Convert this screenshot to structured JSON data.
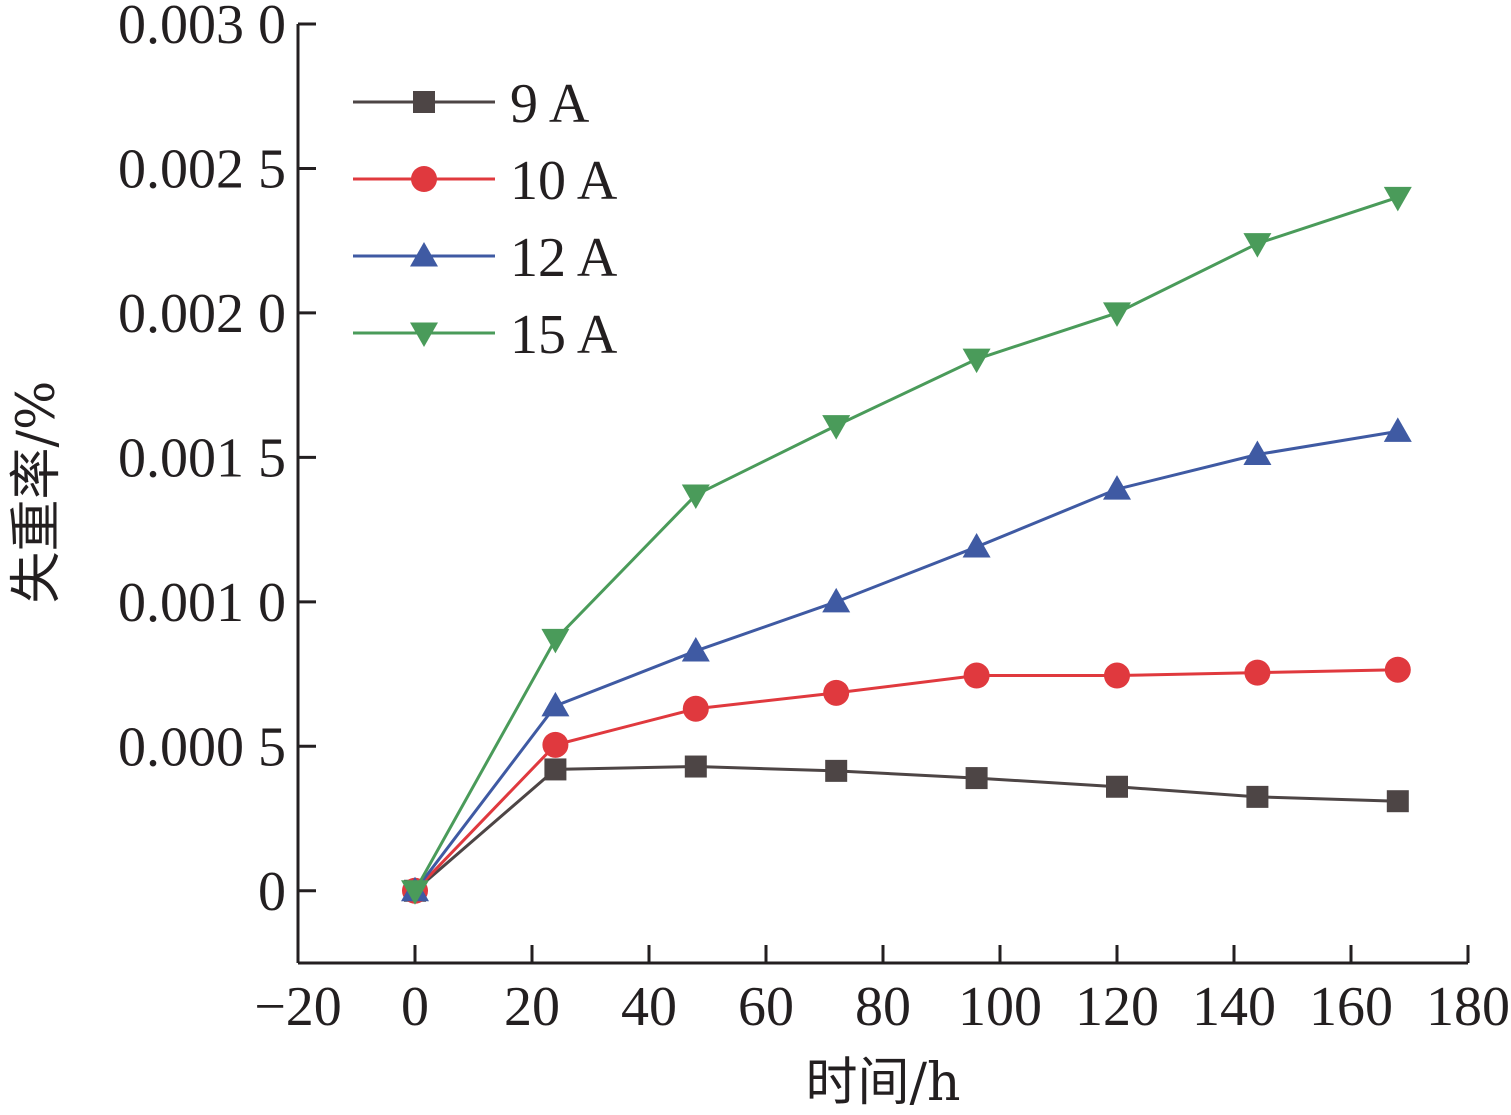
{
  "chart_data": {
    "type": "line",
    "title": "",
    "xlabel": "时间/h",
    "ylabel": "失重率/%",
    "xlim": [
      -20,
      180
    ],
    "ylim": [
      -0.00025,
      0.003
    ],
    "grid": false,
    "legend_position": "top-left",
    "x_ticks": [
      {
        "value": -20,
        "label": "−20"
      },
      {
        "value": 0,
        "label": "0"
      },
      {
        "value": 20,
        "label": "20"
      },
      {
        "value": 40,
        "label": "40"
      },
      {
        "value": 60,
        "label": "60"
      },
      {
        "value": 80,
        "label": "80"
      },
      {
        "value": 100,
        "label": "100"
      },
      {
        "value": 120,
        "label": "120"
      },
      {
        "value": 140,
        "label": "140"
      },
      {
        "value": 160,
        "label": "160"
      },
      {
        "value": 180,
        "label": "180"
      }
    ],
    "y_ticks": [
      {
        "value": 0,
        "label": "0"
      },
      {
        "value": 0.0005,
        "label": "0.000 5"
      },
      {
        "value": 0.001,
        "label": "0.001 0"
      },
      {
        "value": 0.0015,
        "label": "0.001 5"
      },
      {
        "value": 0.002,
        "label": "0.002 0"
      },
      {
        "value": 0.0025,
        "label": "0.002 5"
      },
      {
        "value": 0.003,
        "label": "0.003 0"
      }
    ],
    "x": [
      0,
      24,
      48,
      72,
      96,
      120,
      144,
      168
    ],
    "series": [
      {
        "name": "9 A",
        "color": "#4d4545",
        "marker": "square",
        "values": [
          0,
          0.00042,
          0.00043,
          0.000415,
          0.00039,
          0.00036,
          0.000325,
          0.00031
        ]
      },
      {
        "name": "10 A",
        "color": "#e0393e",
        "marker": "circle",
        "values": [
          0,
          0.000505,
          0.00063,
          0.000685,
          0.000745,
          0.000745,
          0.000755,
          0.000765
        ]
      },
      {
        "name": "12 A",
        "color": "#3f5aa3",
        "marker": "triangle-up",
        "values": [
          0,
          0.00064,
          0.00083,
          0.001,
          0.00119,
          0.00139,
          0.00151,
          0.00159
        ]
      },
      {
        "name": "15 A",
        "color": "#4a9b5a",
        "marker": "triangle-down",
        "values": [
          0,
          0.00087,
          0.00137,
          0.00161,
          0.00184,
          0.002,
          0.00224,
          0.0024
        ]
      }
    ]
  }
}
